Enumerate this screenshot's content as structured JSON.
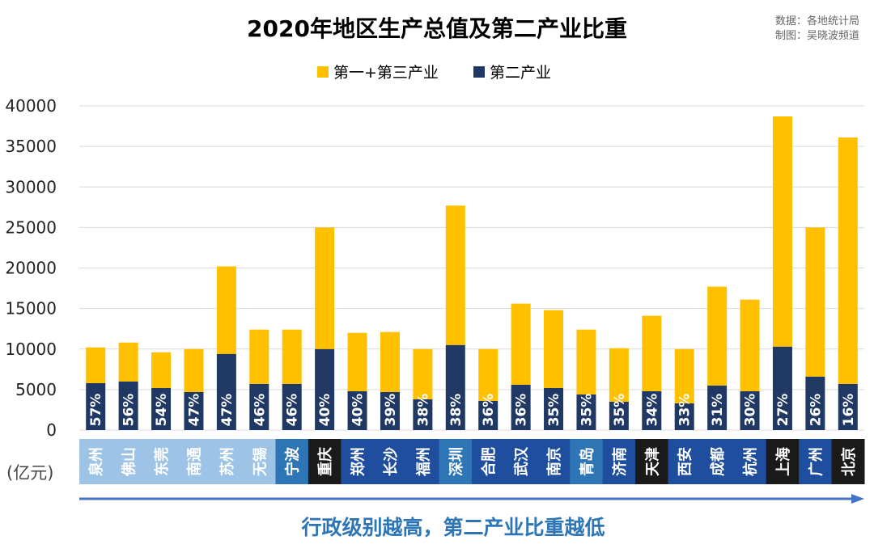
{
  "source_note": [
    "数据：各地统计局",
    "制图：吴晓波频道"
  ],
  "chart_data": {
    "type": "bar",
    "title": "2020年地区生产总值及第二产业比重",
    "ylabel": "(亿元)",
    "ylim": [
      0,
      40000
    ],
    "yticks": [
      0,
      5000,
      10000,
      15000,
      20000,
      25000,
      30000,
      35000,
      40000
    ],
    "grid": true,
    "legend": "top-center",
    "categories": [
      "泉州",
      "佛山",
      "东莞",
      "南通",
      "苏州",
      "无锡",
      "宁波",
      "重庆",
      "郑州",
      "长沙",
      "福州",
      "深圳",
      "合肥",
      "武汉",
      "南京",
      "青岛",
      "济南",
      "天津",
      "西安",
      "成都",
      "杭州",
      "上海",
      "广州",
      "北京"
    ],
    "series": [
      {
        "name": "第二产业",
        "color": "#1f3864",
        "values": [
          5800,
          6000,
          5200,
          4700,
          9400,
          5700,
          5700,
          10000,
          4800,
          4700,
          3800,
          10500,
          3600,
          5600,
          5200,
          4400,
          3500,
          4800,
          3300,
          5500,
          4800,
          10300,
          6600,
          5700
        ]
      },
      {
        "name": "第一+第三产业",
        "color": "#ffc000",
        "values": [
          4400,
          4800,
          4400,
          5300,
          10800,
          6700,
          6700,
          15000,
          7200,
          7400,
          6200,
          17200,
          6400,
          10000,
          9600,
          8000,
          6600,
          9300,
          6700,
          12200,
          11300,
          28400,
          18400,
          30400
        ]
      }
    ],
    "labels": [
      "57%",
      "56%",
      "54%",
      "47%",
      "47%",
      "46%",
      "46%",
      "40%",
      "40%",
      "39%",
      "38%",
      "38%",
      "36%",
      "36%",
      "35%",
      "35%",
      "35%",
      "34%",
      "33%",
      "31%",
      "30%",
      "27%",
      "26%",
      "16%"
    ],
    "category_colors": [
      "#9dc3e6",
      "#9dc3e6",
      "#9dc3e6",
      "#9dc3e6",
      "#9dc3e6",
      "#9dc3e6",
      "#2e75b6",
      "#1a1a1a",
      "#1f4e9f",
      "#1f4e9f",
      "#1f4e9f",
      "#2e75b6",
      "#1f4e9f",
      "#1f4e9f",
      "#1f4e9f",
      "#2e75b6",
      "#1f4e9f",
      "#1a1a1a",
      "#1f4e9f",
      "#1f4e9f",
      "#1f4e9f",
      "#1a1a1a",
      "#1f4e9f",
      "#1a1a1a"
    ],
    "annotation": "行政级别越高，第二产业比重越低"
  }
}
